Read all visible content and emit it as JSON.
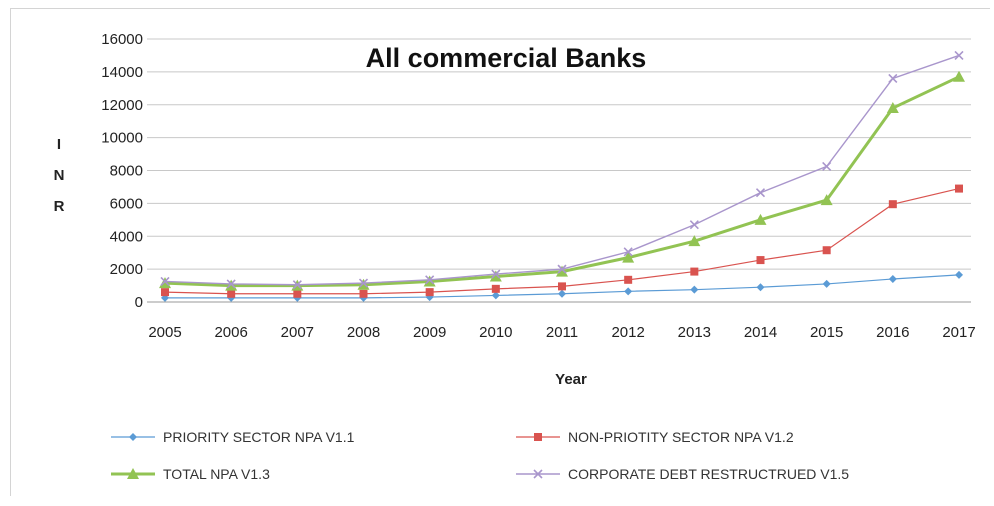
{
  "chart_data": {
    "type": "line",
    "title": "All commercial Banks",
    "xlabel": "Year",
    "ylabel": "INR",
    "ylim": [
      0,
      16000
    ],
    "yticks": [
      0,
      2000,
      4000,
      6000,
      8000,
      10000,
      12000,
      14000,
      16000
    ],
    "ytick_labels": [
      "0",
      "2000",
      "4000",
      "6000",
      "8000",
      "10000",
      "12000",
      "14000",
      "16000"
    ],
    "x": [
      "2005",
      "2006",
      "2007",
      "2008",
      "2009",
      "2010",
      "2011",
      "2012",
      "2013",
      "2014",
      "2015",
      "2016",
      "2017"
    ],
    "grid": true,
    "legend_position": "bottom",
    "series": [
      {
        "name": "PRIORITY SECTOR NPA V1.1",
        "color": "#5b9bd5",
        "marker": "diamond",
        "values": [
          250,
          250,
          250,
          250,
          300,
          400,
          500,
          650,
          750,
          900,
          1100,
          1400,
          1650
        ]
      },
      {
        "name": "NON-PRIOTITY SECTOR NPA V1.2",
        "color": "#d9534f",
        "marker": "square",
        "values": [
          600,
          500,
          500,
          500,
          600,
          800,
          950,
          1350,
          1850,
          2550,
          3150,
          5950,
          6900
        ]
      },
      {
        "name": "TOTAL NPA V1.3",
        "color": "#92c353",
        "marker": "triangle",
        "values": [
          1150,
          1000,
          1000,
          1050,
          1250,
          1550,
          1850,
          2700,
          3700,
          5000,
          6200,
          11800,
          13700
        ]
      },
      {
        "name": "CORPORATE DEBT RESTRUCTRUED V1.5",
        "color": "#a996cc",
        "marker": "x",
        "values": [
          1250,
          1100,
          1050,
          1150,
          1350,
          1700,
          2000,
          3050,
          4700,
          6650,
          8250,
          13600,
          15000
        ]
      }
    ]
  }
}
